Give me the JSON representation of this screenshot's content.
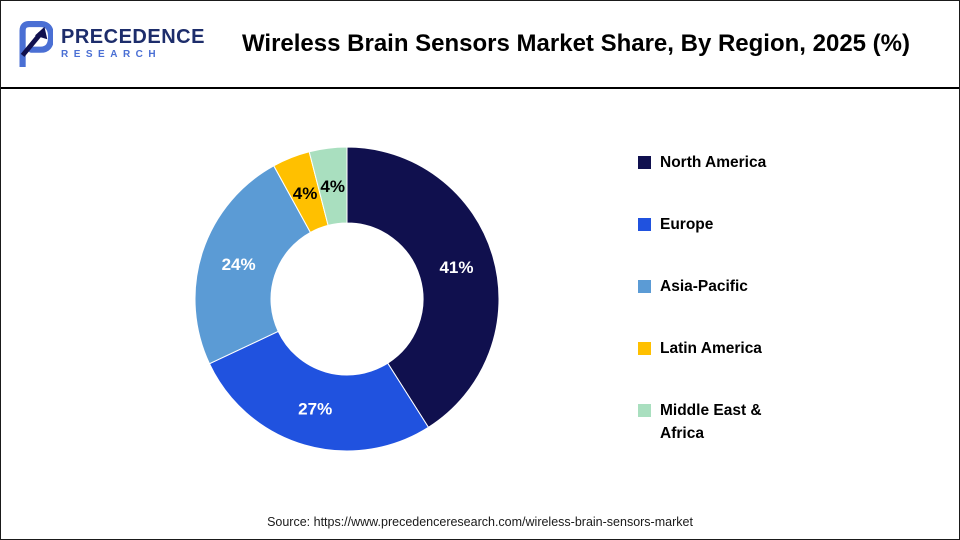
{
  "header": {
    "logo": {
      "primary": "PRECEDENCE",
      "secondary": "RESEARCH"
    },
    "title": "Wireless Brain Sensors Market Share, By Region, 2025 (%)"
  },
  "chart_data": {
    "type": "pie",
    "subtype": "donut",
    "title": "Wireless Brain Sensors Market Share, By Region, 2025 (%)",
    "categories": [
      "North America",
      "Europe",
      "Asia-Pacific",
      "Latin America",
      "Middle East & Africa"
    ],
    "values": [
      41,
      27,
      24,
      4,
      4
    ],
    "labels": [
      "41%",
      "27%",
      "24%",
      "4%",
      "4%"
    ],
    "colors": [
      "#10104e",
      "#2052df",
      "#5b9bd5",
      "#ffc000",
      "#a9dfbf"
    ],
    "label_colors": [
      "#ffffff",
      "#ffffff",
      "#ffffff",
      "#000000",
      "#000000"
    ],
    "unit": "%",
    "donut_hole_ratio": 0.5,
    "start_angle_deg": 0,
    "direction": "clockwise",
    "legend_position": "right"
  },
  "footer": {
    "source": "Source: https://www.precedenceresearch.com/wireless-brain-sensors-market"
  }
}
